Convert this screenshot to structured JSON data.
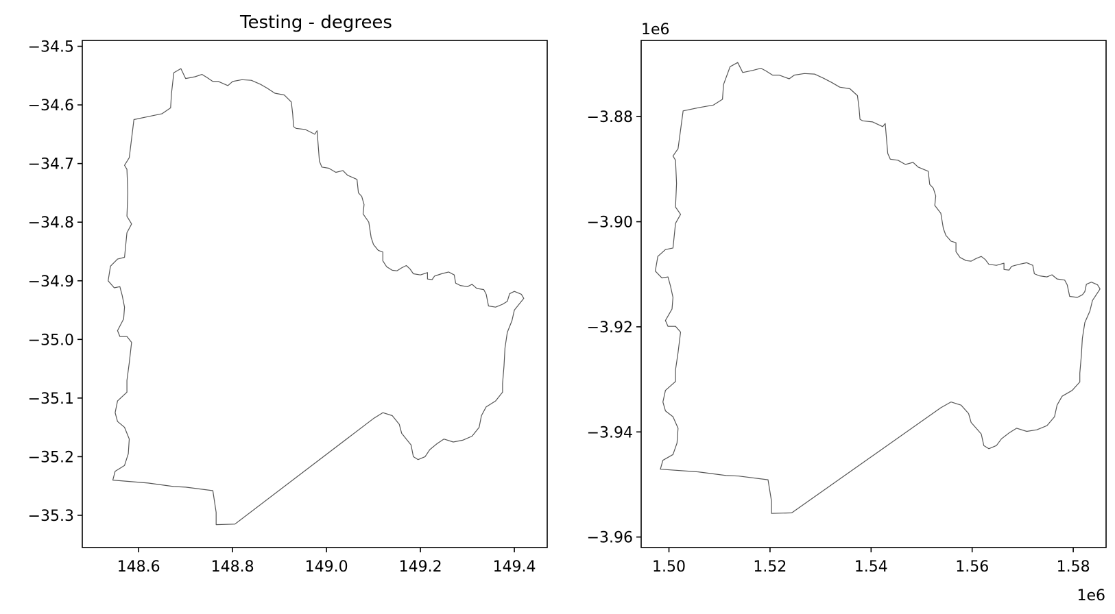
{
  "chart_data": [
    {
      "type": "map",
      "title": "Testing - degrees",
      "xlabel": "",
      "ylabel": "",
      "xlim": [
        148.48,
        149.47
      ],
      "ylim": [
        -35.355,
        -34.49
      ],
      "xticks": [
        148.6,
        148.8,
        149.0,
        149.2,
        149.4
      ],
      "xtick_labels": [
        "148.6",
        "148.8",
        "149.0",
        "149.2",
        "149.4"
      ],
      "yticks": [
        -34.5,
        -34.6,
        -34.7,
        -34.8,
        -34.9,
        -35.0,
        -35.1,
        -35.2,
        -35.3
      ],
      "ytick_labels": [
        "−34.5",
        "−34.6",
        "−34.7",
        "−34.8",
        "−34.9",
        "−35.0",
        "−35.1",
        "−35.2",
        "−35.3"
      ],
      "x_offset_label": "",
      "y_offset_label": "",
      "line_color": "#555555",
      "outline": [
        [
          148.675,
          -34.545
        ],
        [
          148.69,
          -34.538
        ],
        [
          148.7,
          -34.555
        ],
        [
          148.72,
          -34.552
        ],
        [
          148.735,
          -34.548
        ],
        [
          148.745,
          -34.553
        ],
        [
          148.758,
          -34.56
        ],
        [
          148.77,
          -34.56
        ],
        [
          148.79,
          -34.567
        ],
        [
          148.8,
          -34.56
        ],
        [
          148.82,
          -34.557
        ],
        [
          148.84,
          -34.558
        ],
        [
          148.86,
          -34.565
        ],
        [
          148.875,
          -34.572
        ],
        [
          148.89,
          -34.58
        ],
        [
          148.91,
          -34.583
        ],
        [
          148.925,
          -34.595
        ],
        [
          148.928,
          -34.615
        ],
        [
          148.93,
          -34.637
        ],
        [
          148.935,
          -34.64
        ],
        [
          148.955,
          -34.642
        ],
        [
          148.975,
          -34.65
        ],
        [
          148.98,
          -34.644
        ],
        [
          148.985,
          -34.696
        ],
        [
          148.99,
          -34.706
        ],
        [
          149.005,
          -34.708
        ],
        [
          149.02,
          -34.715
        ],
        [
          149.035,
          -34.712
        ],
        [
          149.045,
          -34.72
        ],
        [
          149.065,
          -34.727
        ],
        [
          149.068,
          -34.75
        ],
        [
          149.075,
          -34.756
        ],
        [
          149.08,
          -34.77
        ],
        [
          149.078,
          -34.786
        ],
        [
          149.09,
          -34.8
        ],
        [
          149.095,
          -34.826
        ],
        [
          149.1,
          -34.838
        ],
        [
          149.11,
          -34.848
        ],
        [
          149.12,
          -34.851
        ],
        [
          149.12,
          -34.866
        ],
        [
          149.128,
          -34.876
        ],
        [
          149.14,
          -34.882
        ],
        [
          149.15,
          -34.883
        ],
        [
          149.16,
          -34.878
        ],
        [
          149.17,
          -34.874
        ],
        [
          149.178,
          -34.88
        ],
        [
          149.185,
          -34.888
        ],
        [
          149.2,
          -34.89
        ],
        [
          149.215,
          -34.886
        ],
        [
          149.215,
          -34.897
        ],
        [
          149.225,
          -34.898
        ],
        [
          149.23,
          -34.892
        ],
        [
          149.245,
          -34.888
        ],
        [
          149.26,
          -34.885
        ],
        [
          149.272,
          -34.89
        ],
        [
          149.275,
          -34.904
        ],
        [
          149.285,
          -34.908
        ],
        [
          149.3,
          -34.91
        ],
        [
          149.31,
          -34.906
        ],
        [
          149.32,
          -34.913
        ],
        [
          149.335,
          -34.915
        ],
        [
          149.34,
          -34.923
        ],
        [
          149.345,
          -34.943
        ],
        [
          149.36,
          -34.945
        ],
        [
          149.375,
          -34.94
        ],
        [
          149.385,
          -34.935
        ],
        [
          149.39,
          -34.922
        ],
        [
          149.4,
          -34.918
        ],
        [
          149.415,
          -34.923
        ],
        [
          149.42,
          -34.93
        ],
        [
          149.4,
          -34.95
        ],
        [
          149.395,
          -34.968
        ],
        [
          149.385,
          -34.988
        ],
        [
          149.38,
          -35.015
        ],
        [
          149.378,
          -35.045
        ],
        [
          149.375,
          -35.075
        ],
        [
          149.375,
          -35.09
        ],
        [
          149.36,
          -35.105
        ],
        [
          149.34,
          -35.115
        ],
        [
          149.33,
          -35.13
        ],
        [
          149.325,
          -35.15
        ],
        [
          149.31,
          -35.165
        ],
        [
          149.29,
          -35.172
        ],
        [
          149.27,
          -35.175
        ],
        [
          149.25,
          -35.17
        ],
        [
          149.235,
          -35.178
        ],
        [
          149.22,
          -35.188
        ],
        [
          149.21,
          -35.2
        ],
        [
          149.195,
          -35.205
        ],
        [
          149.185,
          -35.2
        ],
        [
          149.18,
          -35.18
        ],
        [
          149.17,
          -35.17
        ],
        [
          149.16,
          -35.16
        ],
        [
          149.155,
          -35.145
        ],
        [
          149.14,
          -35.13
        ],
        [
          149.12,
          -35.125
        ],
        [
          149.1,
          -35.135
        ],
        [
          148.805,
          -35.315
        ],
        [
          148.765,
          -35.316
        ],
        [
          148.765,
          -35.295
        ],
        [
          148.758,
          -35.258
        ],
        [
          148.7,
          -35.252
        ],
        [
          148.675,
          -35.251
        ],
        [
          148.62,
          -35.245
        ],
        [
          148.545,
          -35.24
        ],
        [
          148.55,
          -35.225
        ],
        [
          148.57,
          -35.215
        ],
        [
          148.578,
          -35.195
        ],
        [
          148.58,
          -35.17
        ],
        [
          148.57,
          -35.15
        ],
        [
          148.555,
          -35.14
        ],
        [
          148.55,
          -35.125
        ],
        [
          148.555,
          -35.105
        ],
        [
          148.575,
          -35.09
        ],
        [
          148.575,
          -35.07
        ],
        [
          148.58,
          -35.04
        ],
        [
          148.585,
          -35.005
        ],
        [
          148.575,
          -34.995
        ],
        [
          148.56,
          -34.995
        ],
        [
          148.555,
          -34.985
        ],
        [
          148.568,
          -34.965
        ],
        [
          148.57,
          -34.945
        ],
        [
          148.565,
          -34.925
        ],
        [
          148.56,
          -34.91
        ],
        [
          148.548,
          -34.912
        ],
        [
          148.535,
          -34.9
        ],
        [
          148.54,
          -34.875
        ],
        [
          148.555,
          -34.863
        ],
        [
          148.57,
          -34.86
        ],
        [
          148.575,
          -34.818
        ],
        [
          148.585,
          -34.803
        ],
        [
          148.575,
          -34.79
        ],
        [
          148.577,
          -34.75
        ],
        [
          148.575,
          -34.71
        ],
        [
          148.57,
          -34.703
        ],
        [
          148.58,
          -34.69
        ],
        [
          148.59,
          -34.625
        ],
        [
          148.62,
          -34.62
        ],
        [
          148.65,
          -34.615
        ],
        [
          148.668,
          -34.605
        ],
        [
          148.67,
          -34.58
        ],
        [
          148.675,
          -34.545
        ]
      ]
    },
    {
      "type": "map",
      "title": "",
      "xlabel": "",
      "ylabel": "",
      "xlim": [
        1.4945,
        1.5865
      ],
      "ylim": [
        -3.962,
        -3.8655
      ],
      "xticks": [
        1.5,
        1.52,
        1.54,
        1.56,
        1.58
      ],
      "xtick_labels": [
        "1.50",
        "1.52",
        "1.54",
        "1.56",
        "1.58"
      ],
      "yticks": [
        -3.88,
        -3.9,
        -3.92,
        -3.94,
        -3.96
      ],
      "ytick_labels": [
        "−3.88",
        "−3.90",
        "−3.92",
        "−3.94",
        "−3.96"
      ],
      "x_offset_label": "1e6",
      "y_offset_label": "1e6",
      "line_color": "#555555",
      "outline": [
        [
          1.5121,
          -3.8705
        ],
        [
          1.5136,
          -3.8697
        ],
        [
          1.5146,
          -3.8716
        ],
        [
          1.5166,
          -3.8712
        ],
        [
          1.5182,
          -3.8708
        ],
        [
          1.5192,
          -3.8713
        ],
        [
          1.5205,
          -3.8721
        ],
        [
          1.5218,
          -3.8721
        ],
        [
          1.5238,
          -3.8728
        ],
        [
          1.5248,
          -3.8721
        ],
        [
          1.5268,
          -3.8718
        ],
        [
          1.5288,
          -3.8719
        ],
        [
          1.5306,
          -3.8727
        ],
        [
          1.5322,
          -3.8735
        ],
        [
          1.5338,
          -3.8744
        ],
        [
          1.5358,
          -3.8747
        ],
        [
          1.5373,
          -3.876
        ],
        [
          1.5376,
          -3.8782
        ],
        [
          1.5378,
          -3.8805
        ],
        [
          1.5383,
          -3.8808
        ],
        [
          1.5403,
          -3.881
        ],
        [
          1.5423,
          -3.8819
        ],
        [
          1.5428,
          -3.8813
        ],
        [
          1.5433,
          -3.887
        ],
        [
          1.5438,
          -3.8881
        ],
        [
          1.5453,
          -3.8883
        ],
        [
          1.5468,
          -3.8891
        ],
        [
          1.5483,
          -3.8887
        ],
        [
          1.5493,
          -3.8896
        ],
        [
          1.5513,
          -3.8904
        ],
        [
          1.5516,
          -3.8929
        ],
        [
          1.5523,
          -3.8936
        ],
        [
          1.5528,
          -3.8951
        ],
        [
          1.5526,
          -3.8969
        ],
        [
          1.5538,
          -3.8984
        ],
        [
          1.5543,
          -3.9013
        ],
        [
          1.5548,
          -3.9026
        ],
        [
          1.5558,
          -3.9037
        ],
        [
          1.5568,
          -3.904
        ],
        [
          1.5568,
          -3.9057
        ],
        [
          1.5576,
          -3.9068
        ],
        [
          1.5588,
          -3.9074
        ],
        [
          1.5598,
          -3.9075
        ],
        [
          1.5608,
          -3.907
        ],
        [
          1.5618,
          -3.9066
        ],
        [
          1.5626,
          -3.9072
        ],
        [
          1.5633,
          -3.9081
        ],
        [
          1.5648,
          -3.9083
        ],
        [
          1.5663,
          -3.9079
        ],
        [
          1.5663,
          -3.9091
        ],
        [
          1.5673,
          -3.9092
        ],
        [
          1.5678,
          -3.9085
        ],
        [
          1.5693,
          -3.9081
        ],
        [
          1.5708,
          -3.9078
        ],
        [
          1.572,
          -3.9083
        ],
        [
          1.5723,
          -3.9099
        ],
        [
          1.5733,
          -3.9103
        ],
        [
          1.5748,
          -3.9105
        ],
        [
          1.5758,
          -3.9101
        ],
        [
          1.5768,
          -3.9109
        ],
        [
          1.5783,
          -3.9111
        ],
        [
          1.5788,
          -3.912
        ],
        [
          1.5793,
          -3.9142
        ],
        [
          1.5808,
          -3.9144
        ],
        [
          1.5818,
          -3.9139
        ],
        [
          1.5823,
          -3.9133
        ],
        [
          1.5826,
          -3.9119
        ],
        [
          1.5836,
          -3.9115
        ],
        [
          1.5848,
          -3.912
        ],
        [
          1.5853,
          -3.9128
        ],
        [
          1.5838,
          -3.915
        ],
        [
          1.5833,
          -3.917
        ],
        [
          1.5823,
          -3.9192
        ],
        [
          1.5818,
          -3.9222
        ],
        [
          1.5816,
          -3.9255
        ],
        [
          1.5813,
          -3.9288
        ],
        [
          1.5813,
          -3.9305
        ],
        [
          1.5798,
          -3.9321
        ],
        [
          1.5778,
          -3.9332
        ],
        [
          1.5768,
          -3.9349
        ],
        [
          1.5763,
          -3.9371
        ],
        [
          1.5748,
          -3.9388
        ],
        [
          1.5728,
          -3.9396
        ],
        [
          1.5708,
          -3.9399
        ],
        [
          1.5688,
          -3.9393
        ],
        [
          1.5673,
          -3.9402
        ],
        [
          1.5658,
          -3.9413
        ],
        [
          1.5648,
          -3.9426
        ],
        [
          1.5633,
          -3.9432
        ],
        [
          1.5623,
          -3.9426
        ],
        [
          1.5618,
          -3.9404
        ],
        [
          1.5608,
          -3.9393
        ],
        [
          1.5598,
          -3.9382
        ],
        [
          1.5593,
          -3.9365
        ],
        [
          1.5578,
          -3.9349
        ],
        [
          1.5558,
          -3.9343
        ],
        [
          1.5538,
          -3.9354
        ],
        [
          1.5243,
          -3.9554
        ],
        [
          1.5203,
          -3.9555
        ],
        [
          1.5203,
          -3.9532
        ],
        [
          1.5196,
          -3.9491
        ],
        [
          1.5138,
          -3.9484
        ],
        [
          1.5113,
          -3.9483
        ],
        [
          1.5058,
          -3.9476
        ],
        [
          1.4983,
          -3.9471
        ],
        [
          1.4988,
          -3.9454
        ],
        [
          1.5008,
          -3.9443
        ],
        [
          1.5016,
          -3.9421
        ],
        [
          1.5018,
          -3.9393
        ],
        [
          1.5008,
          -3.9371
        ],
        [
          1.4993,
          -3.936
        ],
        [
          1.4988,
          -3.9343
        ],
        [
          1.4993,
          -3.9321
        ],
        [
          1.5013,
          -3.9304
        ],
        [
          1.5013,
          -3.9282
        ],
        [
          1.5018,
          -3.9249
        ],
        [
          1.5023,
          -3.921
        ],
        [
          1.5013,
          -3.9199
        ],
        [
          1.4998,
          -3.9199
        ],
        [
          1.4993,
          -3.9188
        ],
        [
          1.5006,
          -3.9166
        ],
        [
          1.5008,
          -3.9144
        ],
        [
          1.5003,
          -3.9122
        ],
        [
          1.4998,
          -3.9105
        ],
        [
          1.4986,
          -3.9107
        ],
        [
          1.4973,
          -3.9094
        ],
        [
          1.4978,
          -3.9066
        ],
        [
          1.4993,
          -3.9053
        ],
        [
          1.5008,
          -3.905
        ],
        [
          1.5013,
          -3.9003
        ],
        [
          1.5023,
          -3.8986
        ],
        [
          1.5013,
          -3.8972
        ],
        [
          1.5015,
          -3.8927
        ],
        [
          1.5013,
          -3.8883
        ],
        [
          1.5008,
          -3.8875
        ],
        [
          1.5018,
          -3.8861
        ],
        [
          1.5028,
          -3.8789
        ],
        [
          1.5058,
          -3.8783
        ],
        [
          1.5088,
          -3.8778
        ],
        [
          1.5106,
          -3.8767
        ],
        [
          1.5108,
          -3.8739
        ],
        [
          1.5121,
          -3.8705
        ]
      ]
    }
  ]
}
